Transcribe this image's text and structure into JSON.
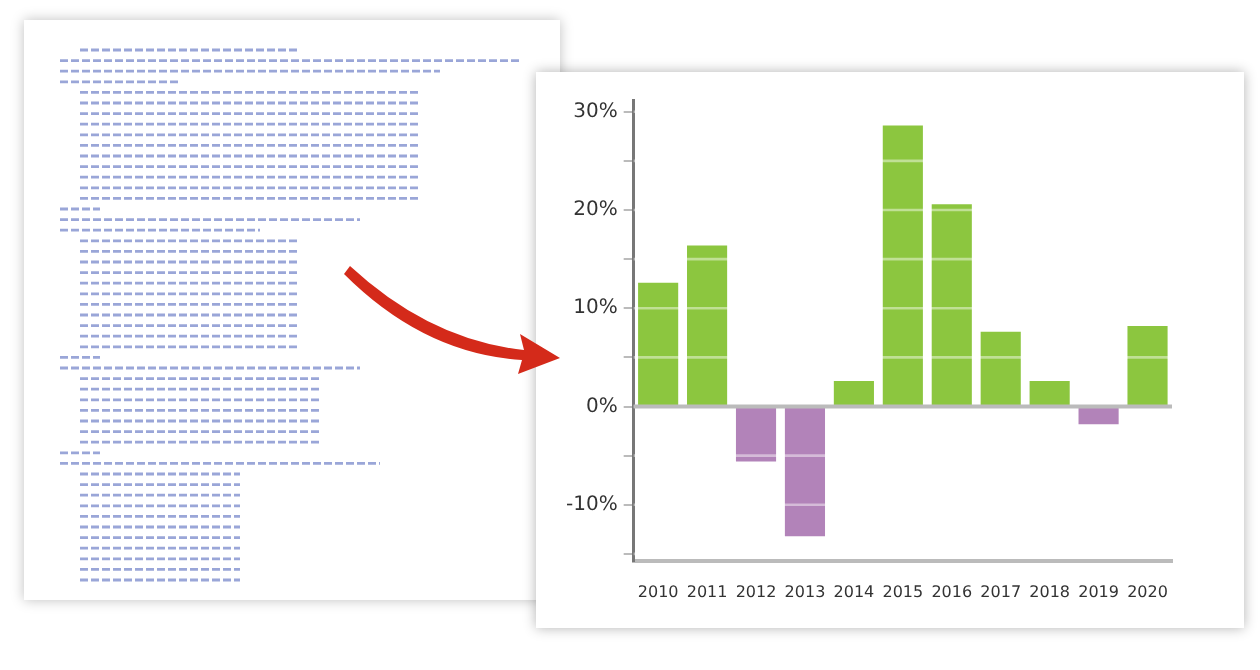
{
  "chart_data": {
    "type": "bar",
    "categories": [
      "2010",
      "2011",
      "2012",
      "2013",
      "2014",
      "2015",
      "2016",
      "2017",
      "2018",
      "2019",
      "2020"
    ],
    "values": [
      12.6,
      16.4,
      -5.6,
      -13.2,
      2.6,
      28.6,
      20.6,
      7.6,
      2.6,
      -1.8,
      8.2
    ],
    "colors": [
      "#8cc63f",
      "#8cc63f",
      "#b283b9",
      "#b283b9",
      "#8cc63f",
      "#8cc63f",
      "#8cc63f",
      "#8cc63f",
      "#8cc63f",
      "#b283b9",
      "#8cc63f"
    ],
    "ylim": [
      -15.7,
      31.2
    ],
    "yticks": [
      {
        "value": -15,
        "label": null
      },
      {
        "value": -10,
        "label": "-10%"
      },
      {
        "value": -5,
        "label": null
      },
      {
        "value": 0,
        "label": "0%"
      },
      {
        "value": 5,
        "label": null
      },
      {
        "value": 10,
        "label": "10%"
      },
      {
        "value": 15,
        "label": null
      },
      {
        "value": 20,
        "label": "20%"
      },
      {
        "value": 25,
        "label": null
      },
      {
        "value": 30,
        "label": "30%"
      }
    ],
    "ref_lines": [
      {
        "axis": "y",
        "value": 0,
        "color": "#bbbbbb"
      }
    ],
    "grid": "y"
  }
}
